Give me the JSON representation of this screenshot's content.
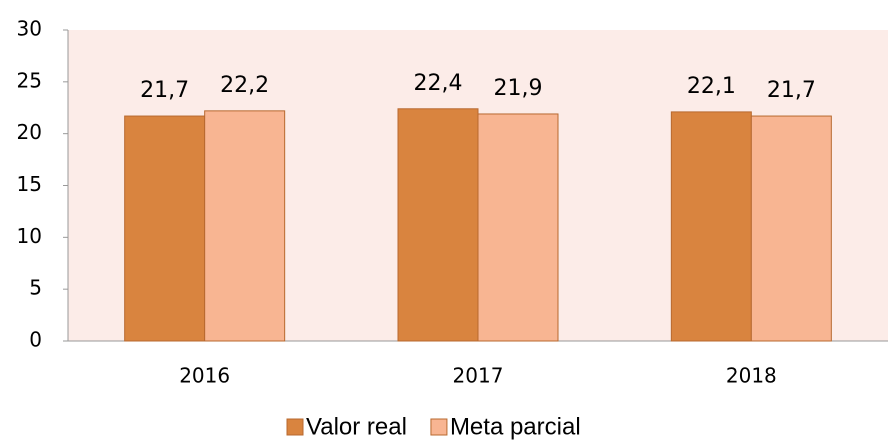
{
  "chart_data": {
    "type": "bar",
    "categories": [
      "2016",
      "2017",
      "2018"
    ],
    "series": [
      {
        "name": "Valor real",
        "color": "#d9843f",
        "values": [
          21.7,
          22.4,
          22.1
        ],
        "value_labels": [
          "21,7",
          "22,4",
          "22,1"
        ]
      },
      {
        "name": "Meta parcial",
        "color": "#f8b592",
        "values": [
          22.2,
          21.9,
          21.7
        ],
        "value_labels": [
          "22,2",
          "21,9",
          "21,7"
        ]
      }
    ],
    "ylim": [
      0,
      30
    ],
    "yticks": [
      0,
      5,
      10,
      15,
      20,
      25,
      30
    ],
    "grid": false,
    "legend": "bottom",
    "plot_background": "#fcece8"
  }
}
